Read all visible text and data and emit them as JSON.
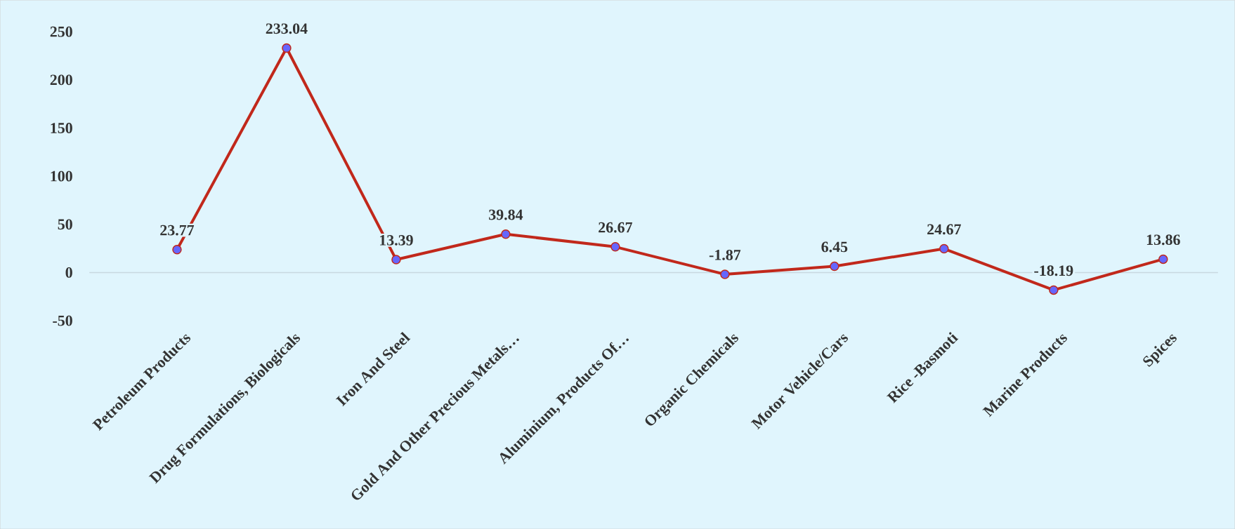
{
  "chart_data": {
    "type": "line",
    "categories": [
      "Petroleum Products",
      "Drug Formulations, Biologicals",
      "Iron And Steel",
      "Gold And Other Precious Metals…",
      "Aluminium, Products Of…",
      "Organic Chemicals",
      "Motor Vehicle/Cars",
      "Rice -Basmoti",
      "Marine Products",
      "Spices"
    ],
    "series": [
      {
        "color": "#c1281b",
        "values": [
          23.77,
          233.04,
          13.39,
          39.84,
          26.67,
          -1.87,
          6.45,
          24.67,
          -18.19,
          13.86
        ],
        "value_labels": [
          "23.77",
          "233.04",
          "13.39",
          "39.84",
          "26.67",
          "-1.87",
          "6.45",
          "24.67",
          "-18.19",
          "13.86"
        ]
      }
    ],
    "ylim": [
      -50,
      250
    ],
    "yticks": [
      -50,
      0,
      50,
      100,
      150,
      200,
      250
    ],
    "ref_lines": [
      {
        "axis": "y",
        "value": 0,
        "color": "#c8d8e0"
      }
    ],
    "marker": "circle",
    "line_style": "solid"
  }
}
